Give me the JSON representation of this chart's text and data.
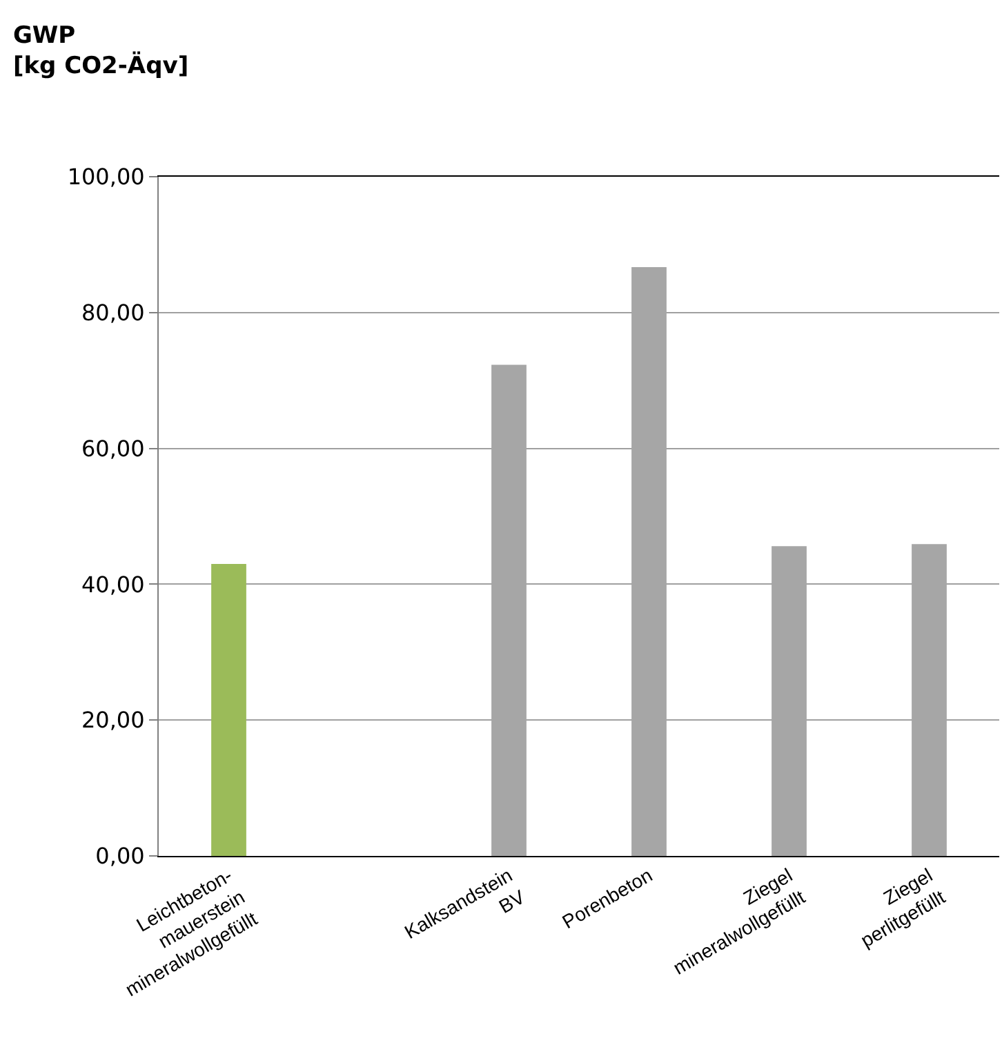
{
  "chart_data": {
    "type": "bar",
    "title": "GWP\n[kg CO2-Äqv]",
    "categories": [
      "Leichtbeton-\nmauerstein\nmineralwollgefüllt",
      null,
      "Kalksandstein\nBV",
      "Porenbeton",
      "Ziegel\nmineralwollgefüllt",
      "Ziegel\nperlitgefüllt"
    ],
    "values": [
      43.0,
      null,
      72.3,
      86.7,
      45.6,
      45.9
    ],
    "colors": [
      "#9bbb59",
      "#a6a6a6",
      "#a6a6a6",
      "#a6a6a6",
      "#a6a6a6",
      "#a6a6a6"
    ],
    "ylim": [
      0,
      100
    ],
    "yticks": [
      {
        "value": 0,
        "label": "0,00"
      },
      {
        "value": 20,
        "label": "20,00"
      },
      {
        "value": 40,
        "label": "40,00"
      },
      {
        "value": 60,
        "label": "60,00"
      },
      {
        "value": 80,
        "label": "80,00"
      },
      {
        "value": 100,
        "label": "100,00"
      }
    ],
    "grid": "y",
    "legend": false
  }
}
